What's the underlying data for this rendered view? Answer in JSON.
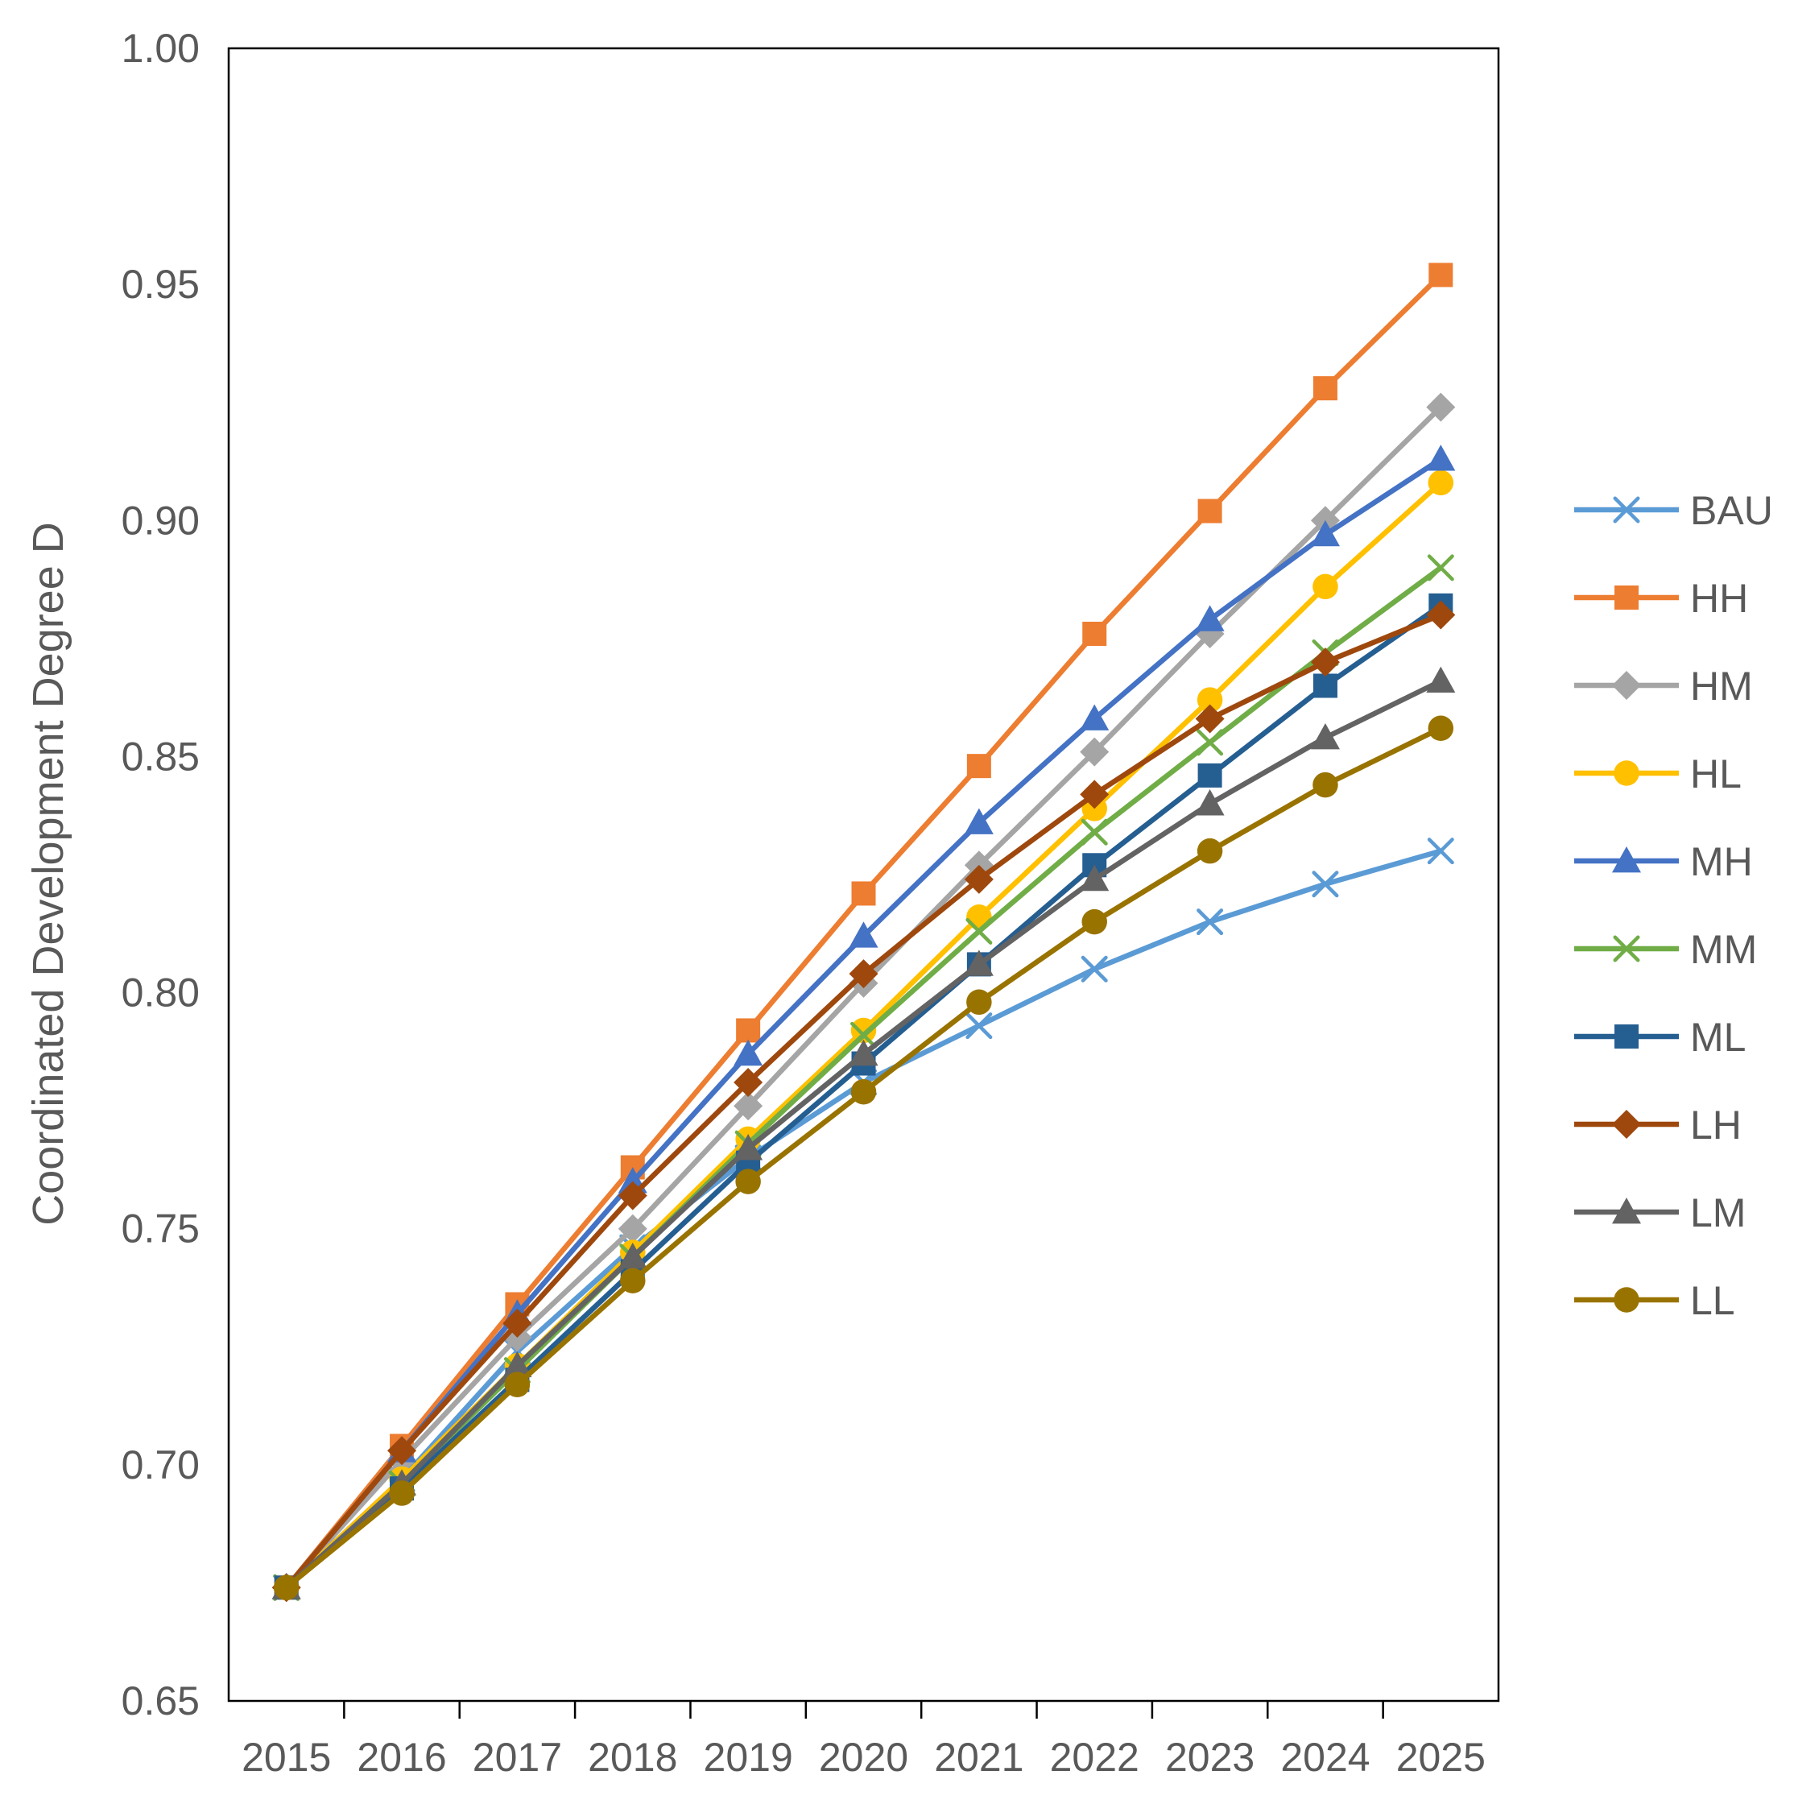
{
  "chart_data": {
    "type": "line",
    "title": "",
    "xlabel": "",
    "ylabel": "Coordinated Development Degree D",
    "ylim": [
      0.65,
      1.0
    ],
    "yticks": [
      "0.65",
      "0.70",
      "0.75",
      "0.80",
      "0.85",
      "0.90",
      "0.95",
      "1.00"
    ],
    "grid": false,
    "legend_position": "right",
    "categories": [
      "2015",
      "2016",
      "2017",
      "2018",
      "2019",
      "2020",
      "2021",
      "2022",
      "2023",
      "2024",
      "2025"
    ],
    "series": [
      {
        "name": "BAU",
        "color": "#5b9bd5",
        "marker": "x",
        "values": [
          0.674,
          0.697,
          0.724,
          0.746,
          0.765,
          0.781,
          0.793,
          0.805,
          0.815,
          0.823,
          0.83
        ]
      },
      {
        "name": "HH",
        "color": "#ed7d31",
        "marker": "square",
        "values": [
          0.674,
          0.704,
          0.734,
          0.763,
          0.792,
          0.821,
          0.848,
          0.876,
          0.902,
          0.928,
          0.952
        ]
      },
      {
        "name": "HM",
        "color": "#a5a5a5",
        "marker": "diamond",
        "values": [
          0.674,
          0.701,
          0.727,
          0.75,
          0.776,
          0.802,
          0.827,
          0.851,
          0.876,
          0.9,
          0.924
        ]
      },
      {
        "name": "HL",
        "color": "#ffc000",
        "marker": "circle",
        "values": [
          0.674,
          0.697,
          0.721,
          0.745,
          0.769,
          0.792,
          0.816,
          0.839,
          0.862,
          0.886,
          0.908
        ]
      },
      {
        "name": "MH",
        "color": "#4472c4",
        "marker": "triangle",
        "values": [
          0.674,
          0.703,
          0.732,
          0.76,
          0.787,
          0.812,
          0.836,
          0.858,
          0.879,
          0.897,
          0.913
        ]
      },
      {
        "name": "MM",
        "color": "#70ad47",
        "marker": "x",
        "values": [
          0.674,
          0.696,
          0.72,
          0.744,
          0.768,
          0.791,
          0.813,
          0.834,
          0.853,
          0.872,
          0.89
        ]
      },
      {
        "name": "ML",
        "color": "#255e91",
        "marker": "square",
        "values": [
          0.674,
          0.695,
          0.718,
          0.741,
          0.764,
          0.785,
          0.806,
          0.827,
          0.846,
          0.865,
          0.882
        ]
      },
      {
        "name": "LH",
        "color": "#9e480e",
        "marker": "diamond",
        "values": [
          0.674,
          0.703,
          0.73,
          0.757,
          0.781,
          0.804,
          0.824,
          0.842,
          0.858,
          0.87,
          0.88
        ]
      },
      {
        "name": "LM",
        "color": "#636363",
        "marker": "triangle",
        "values": [
          0.674,
          0.696,
          0.721,
          0.744,
          0.767,
          0.787,
          0.806,
          0.824,
          0.84,
          0.854,
          0.866
        ]
      },
      {
        "name": "LL",
        "color": "#997300",
        "marker": "circle",
        "values": [
          0.674,
          0.694,
          0.717,
          0.739,
          0.76,
          0.779,
          0.798,
          0.815,
          0.83,
          0.844,
          0.856
        ]
      }
    ]
  }
}
